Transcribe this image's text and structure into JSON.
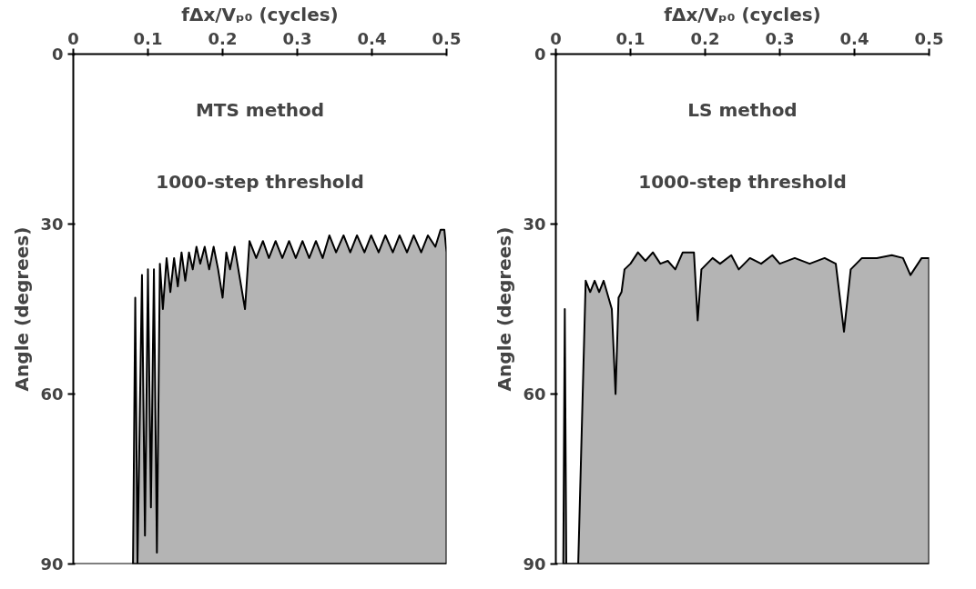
{
  "chart_data": [
    {
      "type": "area",
      "xlabel": "fΔx/Vₚ₀ (cycles)",
      "ylabel": "Angle (degrees)",
      "annotations": [
        "MTS method",
        "1000-step threshold"
      ],
      "xlim": [
        0,
        0.5
      ],
      "xticks": [
        0,
        0.1,
        0.2,
        0.3,
        0.4,
        0.5
      ],
      "ylim": [
        90,
        0
      ],
      "yticks": [
        0,
        30,
        60,
        90
      ],
      "grid": false,
      "series": [
        {
          "color": "#b4b4b4",
          "x": [
            0.08,
            0.083,
            0.086,
            0.092,
            0.096,
            0.1,
            0.104,
            0.108,
            0.112,
            0.116,
            0.12,
            0.125,
            0.13,
            0.135,
            0.14,
            0.145,
            0.15,
            0.155,
            0.16,
            0.165,
            0.17,
            0.176,
            0.182,
            0.188,
            0.194,
            0.2,
            0.205,
            0.21,
            0.216,
            0.23,
            0.236,
            0.245,
            0.254,
            0.262,
            0.271,
            0.28,
            0.289,
            0.298,
            0.307,
            0.316,
            0.325,
            0.334,
            0.343,
            0.352,
            0.362,
            0.371,
            0.38,
            0.39,
            0.399,
            0.409,
            0.418,
            0.428,
            0.437,
            0.447,
            0.456,
            0.466,
            0.475,
            0.485,
            0.492,
            0.497,
            0.5,
            0.5
          ],
          "values": [
            90,
            43,
            90,
            39,
            85,
            38,
            80,
            38,
            88,
            37,
            45,
            36,
            42,
            36,
            41,
            35,
            40,
            35,
            38,
            34,
            37,
            34,
            38,
            34,
            38,
            43,
            35,
            38,
            34,
            45,
            33,
            36,
            33,
            36,
            33,
            36,
            33,
            36,
            33,
            36,
            33,
            36,
            32,
            35,
            32,
            35,
            32,
            35,
            32,
            35,
            32,
            35,
            32,
            35,
            32,
            35,
            32,
            34,
            31,
            31,
            35,
            90
          ]
        }
      ]
    },
    {
      "type": "area",
      "xlabel": "fΔx/Vₚ₀ (cycles)",
      "ylabel": "Angle (degrees)",
      "annotations": [
        "LS method",
        "1000-step threshold"
      ],
      "xlim": [
        0,
        0.5
      ],
      "xticks": [
        0,
        0.1,
        0.2,
        0.3,
        0.4,
        0.5
      ],
      "ylim": [
        90,
        0
      ],
      "yticks": [
        0,
        30,
        60,
        90
      ],
      "grid": false,
      "series": [
        {
          "color": "#b4b4b4",
          "x": [
            0.01,
            0.012,
            0.014,
            0.03,
            0.04,
            0.046,
            0.052,
            0.058,
            0.064,
            0.075,
            0.08,
            0.084,
            0.088,
            0.092,
            0.1,
            0.11,
            0.12,
            0.13,
            0.14,
            0.15,
            0.16,
            0.17,
            0.185,
            0.19,
            0.195,
            0.21,
            0.22,
            0.235,
            0.245,
            0.26,
            0.275,
            0.29,
            0.3,
            0.32,
            0.34,
            0.36,
            0.375,
            0.386,
            0.395,
            0.41,
            0.43,
            0.45,
            0.465,
            0.475,
            0.49,
            0.5,
            0.5
          ],
          "values": [
            90,
            45,
            90,
            90,
            40,
            42,
            40,
            42,
            40,
            45,
            60,
            43,
            42,
            38,
            37,
            35,
            36.5,
            35,
            37,
            36.5,
            38,
            35,
            35,
            47,
            38,
            36,
            37,
            35.5,
            38,
            36,
            37,
            35.5,
            37,
            36,
            37,
            36,
            37,
            49,
            38,
            36,
            36,
            35.5,
            36,
            39,
            36,
            36,
            90
          ]
        }
      ]
    }
  ]
}
